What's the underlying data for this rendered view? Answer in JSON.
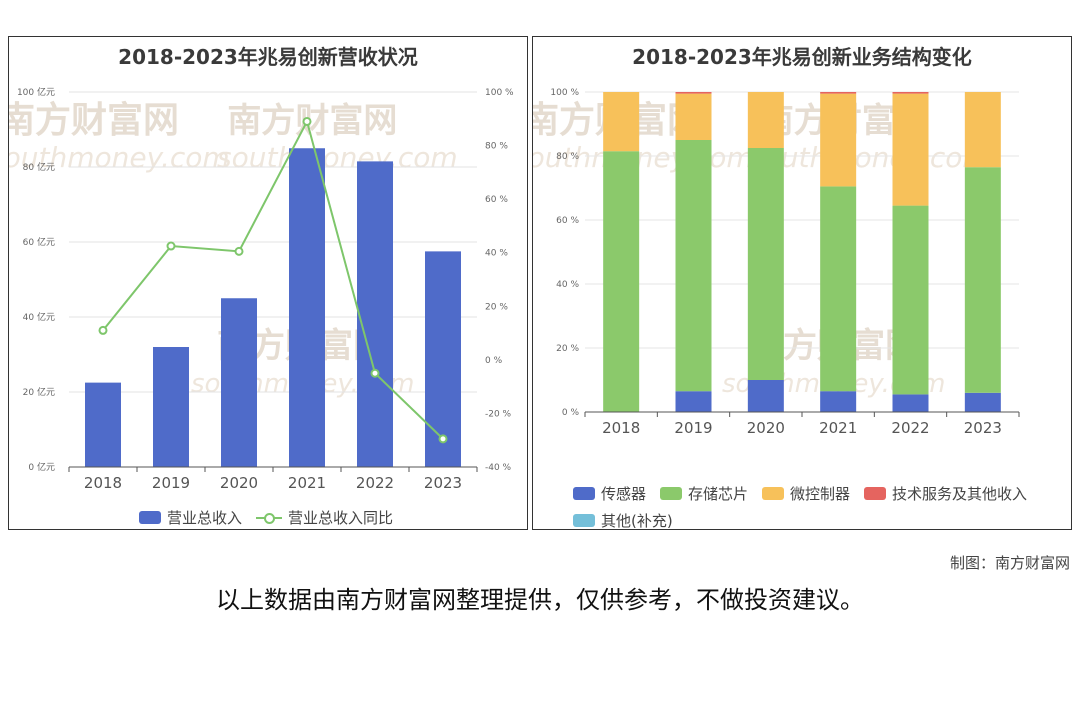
{
  "chart_data": [
    {
      "type": "bar",
      "title": "2018-2023年兆易创新营收状况",
      "categories": [
        "2018",
        "2019",
        "2020",
        "2021",
        "2022",
        "2023"
      ],
      "series": [
        {
          "name": "营业总收入",
          "type": "bar",
          "axis": "left",
          "color": "#4f6bc9",
          "values": [
            22.5,
            32,
            45,
            85,
            81.5,
            57.5
          ]
        },
        {
          "name": "营业总收入同比",
          "type": "line",
          "axis": "right",
          "color": "#7ec66b",
          "values": [
            11,
            42.5,
            40.5,
            89,
            -5,
            -29.5
          ]
        }
      ],
      "left_axis": {
        "ylim": [
          0,
          100
        ],
        "ticks": [
          "0 亿元",
          "20 亿元",
          "40 亿元",
          "60 亿元",
          "80 亿元",
          "100 亿元"
        ]
      },
      "right_axis": {
        "ylim": [
          -40,
          100
        ],
        "ticks": [
          "-40 %",
          "-20 %",
          "0 %",
          "20 %",
          "40 %",
          "60 %",
          "80 %",
          "100 %"
        ]
      },
      "grid": true,
      "legend_position": "bottom"
    },
    {
      "type": "bar",
      "stacked": true,
      "title": "2018-2023年兆易创新业务结构变化",
      "categories": [
        "2018",
        "2019",
        "2020",
        "2021",
        "2022",
        "2023"
      ],
      "series": [
        {
          "name": "传感器",
          "color": "#4f6bc9",
          "values": [
            0,
            6.5,
            10,
            6.5,
            5.5,
            6
          ]
        },
        {
          "name": "存储芯片",
          "color": "#8bc96b",
          "values": [
            81.5,
            78.5,
            72.5,
            64,
            59,
            70.5
          ]
        },
        {
          "name": "微控制器",
          "color": "#f7c15a",
          "values": [
            18.5,
            14.5,
            17.5,
            29,
            35,
            23.5
          ]
        },
        {
          "name": "技术服务及其他收入",
          "color": "#e5645f",
          "values": [
            0,
            0.5,
            0,
            0.5,
            0.5,
            0
          ]
        },
        {
          "name": "其他(补充)",
          "color": "#74bfd9",
          "values": [
            0,
            0,
            0,
            0,
            0,
            0
          ]
        }
      ],
      "ylim": [
        0,
        100
      ],
      "ticks": [
        "0 %",
        "20 %",
        "40 %",
        "60 %",
        "80 %",
        "100 %"
      ],
      "grid": true,
      "legend_position": "bottom"
    }
  ],
  "watermark": {
    "brand": "南方财富网",
    "site": "southmoney.com"
  },
  "credit": "制图：南方财富网",
  "footer_note": "以上数据由南方财富网整理提供，仅供参考，不做投资建议。"
}
